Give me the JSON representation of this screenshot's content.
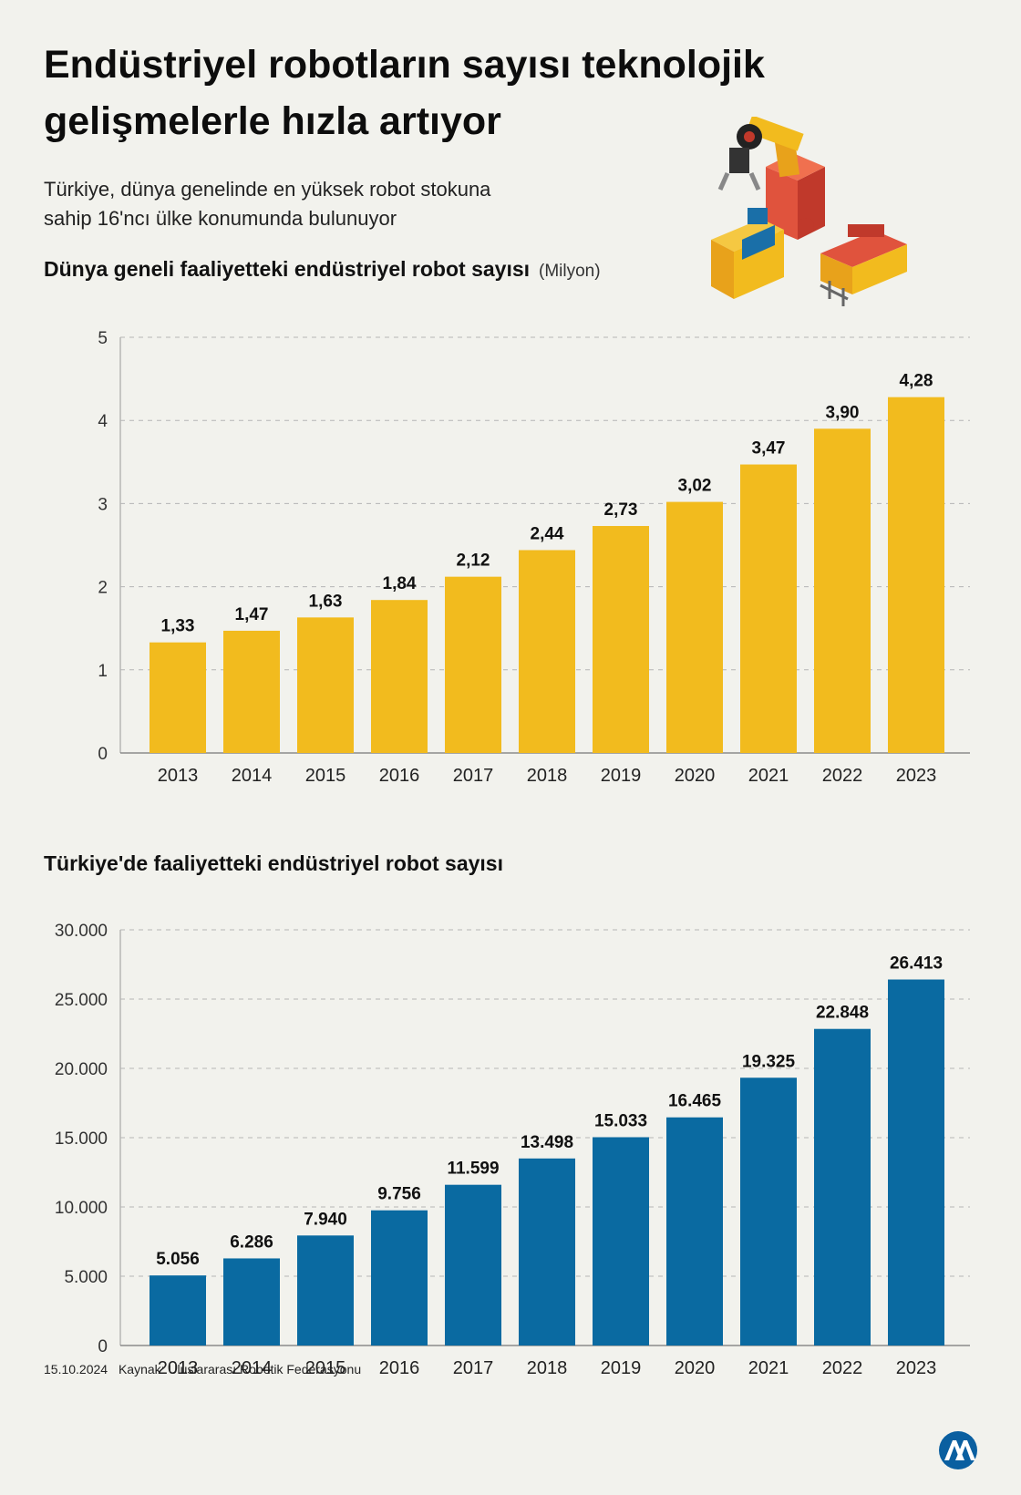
{
  "title_lines": [
    "Endüstriyel robotların sayısı teknolojik",
    "gelişmelerle hızla artıyor"
  ],
  "subtitle_lines": [
    "Türkiye, dünya genelinde en yüksek robot stokuna",
    "sahip 16'ncı ülke konumunda bulunuyor"
  ],
  "footer": {
    "date": "15.10.2024",
    "source": "Kaynak: Uluslararası Robotik Federasyonu"
  },
  "colors": {
    "world_bar": "#f2bb1e",
    "turkey_bar": "#0a6aa1",
    "background": "#f2f2ed",
    "logo": "#0a5fa0"
  },
  "icons": {
    "illustration": "industrial-robot-arm-icon",
    "logo": "aa-logo-icon"
  },
  "chart_data": [
    {
      "type": "bar",
      "title": "Dünya geneli faaliyetteki endüstriyel robot sayısı",
      "unit": "(Milyon)",
      "categories": [
        "2013",
        "2014",
        "2015",
        "2016",
        "2017",
        "2018",
        "2019",
        "2020",
        "2021",
        "2022",
        "2023"
      ],
      "values": [
        1.33,
        1.47,
        1.63,
        1.84,
        2.12,
        2.44,
        2.73,
        3.02,
        3.47,
        3.9,
        4.28
      ],
      "value_labels": [
        "1,33",
        "1,47",
        "1,63",
        "1,84",
        "2,12",
        "2,44",
        "2,73",
        "3,02",
        "3,47",
        "3,90",
        "4,28"
      ],
      "yticks": [
        "0",
        "1",
        "2",
        "3",
        "4",
        "5"
      ],
      "ylim": [
        0,
        5
      ],
      "grid": true
    },
    {
      "type": "bar",
      "title": "Türkiye'de faaliyetteki endüstriyel robot sayısı",
      "categories": [
        "2013",
        "2014",
        "2015",
        "2016",
        "2017",
        "2018",
        "2019",
        "2020",
        "2021",
        "2022",
        "2023"
      ],
      "values": [
        5056,
        6286,
        7940,
        9756,
        11599,
        13498,
        15033,
        16465,
        19325,
        22848,
        26413
      ],
      "value_labels": [
        "5.056",
        "6.286",
        "7.940",
        "9.756",
        "11.599",
        "13.498",
        "15.033",
        "16.465",
        "19.325",
        "22.848",
        "26.413"
      ],
      "yticks": [
        "0",
        "5.000",
        "10.000",
        "15.000",
        "20.000",
        "25.000",
        "30.000"
      ],
      "ylim": [
        0,
        30000
      ],
      "grid": true
    }
  ]
}
